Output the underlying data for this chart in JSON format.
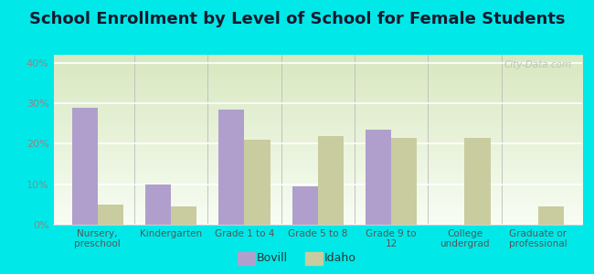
{
  "title": "School Enrollment by Level of School for Female Students",
  "categories": [
    "Nursery,\npreschool",
    "Kindergarten",
    "Grade 1 to 4",
    "Grade 5 to 8",
    "Grade 9 to\n12",
    "College\nundergrad",
    "Graduate or\nprofessional"
  ],
  "bovill": [
    29,
    10,
    28.5,
    9.5,
    23.5,
    0,
    0
  ],
  "idaho": [
    5,
    4.5,
    21,
    22,
    21.5,
    21.5,
    4.5
  ],
  "bovill_color": "#b09fcc",
  "idaho_color": "#c8cc9f",
  "ylim": [
    0,
    42
  ],
  "yticks": [
    0,
    10,
    20,
    30,
    40
  ],
  "ytick_labels": [
    "0%",
    "10%",
    "20%",
    "30%",
    "40%"
  ],
  "background_outer": "#00e8e8",
  "title_fontsize": 13,
  "legend_labels": [
    "Bovill",
    "Idaho"
  ],
  "watermark": "City-Data.com"
}
